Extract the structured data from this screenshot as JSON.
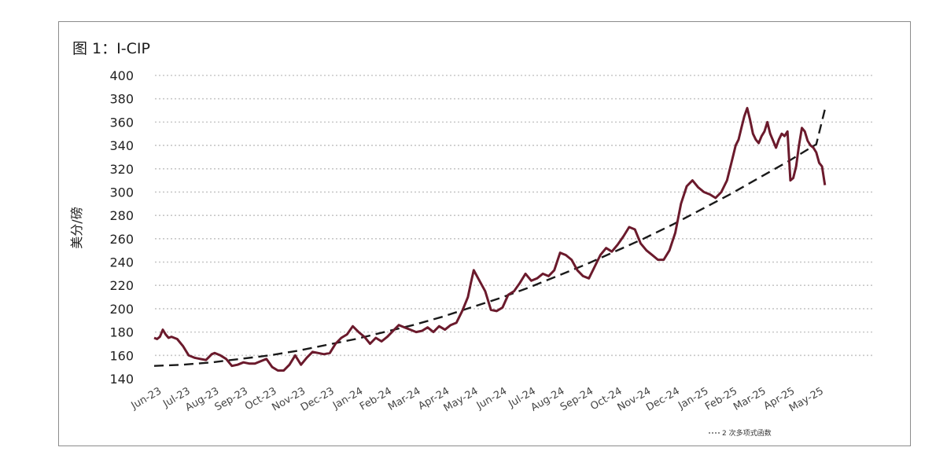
{
  "chart_data": {
    "type": "line",
    "title": "图 1：I-CIP",
    "ylabel": "美分/磅",
    "xlabel": "",
    "ylim": [
      140,
      400
    ],
    "yticks": [
      140,
      160,
      180,
      200,
      220,
      240,
      260,
      280,
      300,
      320,
      340,
      360,
      380,
      400
    ],
    "x_tick_labels": [
      "Jun-23",
      "Jul-23",
      "Aug-23",
      "Sep-23",
      "Oct-23",
      "Nov-23",
      "Dec-23",
      "Jan-24",
      "Feb-24",
      "Mar-24",
      "Apr-24",
      "May-24",
      "Jun-24",
      "Jul-24",
      "Aug-24",
      "Sep-24",
      "Oct-24",
      "Nov-24",
      "Dec-24",
      "Jan-25",
      "Feb-25",
      "Mar-25",
      "Apr-25",
      "May-25"
    ],
    "grid": "horizontal-dotted",
    "legend_placement": "bottom-right",
    "colors": {
      "series": "#6b1a2c",
      "trend": "#1a1a1a",
      "grid": "#c8c8c8"
    },
    "series": [
      {
        "x": [
          0,
          0.1,
          0.2,
          0.3,
          0.4,
          0.5,
          0.6,
          0.8,
          1.0,
          1.2,
          1.4,
          1.6,
          1.8,
          2.0,
          2.1,
          2.3,
          2.5,
          2.7,
          2.9,
          3.1,
          3.3,
          3.5,
          3.7,
          3.9,
          4.1,
          4.3,
          4.5,
          4.7,
          4.9,
          5.1,
          5.3,
          5.5,
          5.7,
          5.9,
          6.1,
          6.3,
          6.5,
          6.7,
          6.9,
          7.1,
          7.3,
          7.5,
          7.7,
          7.9,
          8.1,
          8.3,
          8.5,
          8.7,
          8.9,
          9.1,
          9.3,
          9.5,
          9.7,
          9.9,
          10.1,
          10.3,
          10.5,
          10.7,
          10.9,
          11.0,
          11.1,
          11.3,
          11.5,
          11.7,
          11.9,
          12.1,
          12.3,
          12.5,
          12.7,
          12.9,
          13.1,
          13.3,
          13.5,
          13.7,
          13.9,
          14.1,
          14.3,
          14.5,
          14.7,
          14.9,
          15.1,
          15.3,
          15.5,
          15.7,
          15.9,
          16.1,
          16.3,
          16.5,
          16.7,
          16.9,
          17.1,
          17.3,
          17.5,
          17.7,
          17.9,
          18.1,
          18.3,
          18.5,
          18.7,
          18.9,
          19.1,
          19.3,
          19.5,
          19.7,
          19.9,
          20.0,
          20.1,
          20.2,
          20.3,
          20.4,
          20.5,
          20.6,
          20.7,
          20.8,
          20.9,
          21.0,
          21.1,
          21.2,
          21.3,
          21.4,
          21.5,
          21.6,
          21.7,
          21.8,
          21.9,
          22.0,
          22.1,
          22.2,
          22.3,
          22.4,
          22.5,
          22.6,
          22.7,
          22.8,
          22.9,
          23.0,
          23.1,
          23.2,
          23.3
        ],
        "values": [
          175,
          174,
          176,
          182,
          178,
          175,
          176,
          174,
          168,
          160,
          158,
          157,
          156,
          161,
          162,
          160,
          157,
          151,
          152,
          154,
          153,
          153,
          155,
          157,
          150,
          147,
          147,
          152,
          160,
          152,
          158,
          163,
          162,
          161,
          162,
          170,
          175,
          178,
          185,
          180,
          176,
          170,
          175,
          172,
          176,
          181,
          186,
          184,
          182,
          180,
          181,
          184,
          180,
          185,
          182,
          186,
          188,
          198,
          210,
          222,
          233,
          224,
          215,
          199,
          198,
          201,
          212,
          215,
          222,
          230,
          224,
          226,
          230,
          228,
          233,
          248,
          246,
          242,
          233,
          228,
          226,
          236,
          246,
          252,
          249,
          255,
          262,
          270,
          268,
          256,
          250,
          246,
          242,
          242,
          250,
          265,
          290,
          305,
          310,
          304,
          300,
          298,
          295,
          300,
          310,
          320,
          330,
          340,
          345,
          355,
          365,
          372,
          362,
          350,
          345,
          342,
          348,
          352,
          360,
          350,
          344,
          338,
          345,
          350,
          348,
          352,
          310,
          312,
          322,
          340,
          355,
          352,
          344,
          340,
          338,
          334,
          325,
          322,
          306
        ]
      },
      {
        "x": [
          0,
          1,
          2,
          3,
          4,
          5,
          6,
          7,
          8,
          9,
          10,
          11,
          12,
          13,
          14,
          15,
          16,
          17,
          18,
          19,
          20,
          21,
          22,
          23,
          23.3
        ],
        "values": [
          151,
          152,
          154,
          157,
          160,
          164,
          169,
          174,
          180,
          186,
          193,
          201,
          209,
          218,
          228,
          238,
          249,
          260,
          272,
          285,
          298,
          312,
          326,
          341,
          371
        ]
      }
    ],
    "legend": [
      {
        "label": "2 次多项式函数",
        "style": "dashed"
      }
    ]
  }
}
